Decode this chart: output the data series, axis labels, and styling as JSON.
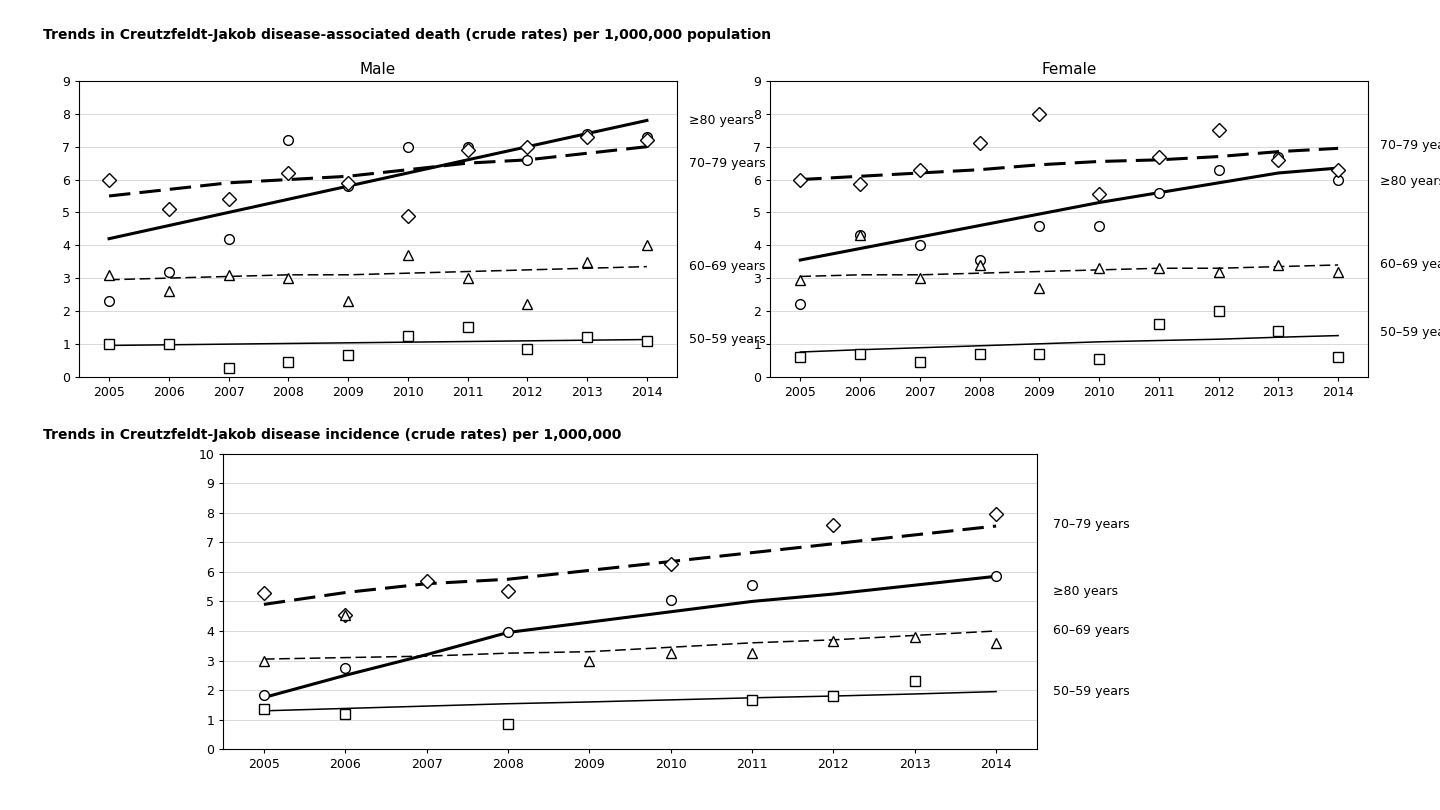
{
  "years": [
    2005,
    2006,
    2007,
    2008,
    2009,
    2010,
    2011,
    2012,
    2013,
    2014
  ],
  "title_top": "Trends in Creutzfeldt-Jakob disease-associated death (crude rates) per 1,000,000 population",
  "title_bottom": "Trends in Creutzfeldt-Jakob disease incidence (crude rates) per 1,000,000",
  "male_ge80_scatter": [
    2.3,
    3.2,
    4.2,
    7.2,
    5.8,
    7.0,
    7.0,
    6.6,
    7.4,
    7.3
  ],
  "male_ge80_trend": [
    4.2,
    4.6,
    5.0,
    5.4,
    5.8,
    6.2,
    6.6,
    7.0,
    7.4,
    7.8
  ],
  "male_7079_scatter": [
    6.0,
    5.1,
    5.4,
    6.2,
    5.9,
    4.9,
    6.9,
    7.0,
    7.3,
    7.2
  ],
  "male_7079_trend": [
    5.5,
    5.7,
    5.9,
    6.0,
    6.1,
    6.3,
    6.5,
    6.6,
    6.8,
    7.0
  ],
  "male_6069_scatter": [
    3.1,
    2.6,
    3.1,
    3.0,
    2.3,
    3.7,
    3.0,
    2.2,
    3.5,
    4.0
  ],
  "male_6069_trend": [
    2.95,
    3.0,
    3.05,
    3.1,
    3.1,
    3.15,
    3.2,
    3.25,
    3.3,
    3.35
  ],
  "male_5059_scatter": [
    1.0,
    1.0,
    0.25,
    0.45,
    0.65,
    1.25,
    1.5,
    0.85,
    1.2,
    1.1
  ],
  "male_5059_trend": [
    0.95,
    0.97,
    0.99,
    1.01,
    1.03,
    1.05,
    1.07,
    1.09,
    1.11,
    1.13
  ],
  "female_ge80_scatter": [
    2.2,
    4.3,
    4.0,
    3.55,
    4.6,
    4.6,
    5.6,
    6.3,
    6.7,
    6.0
  ],
  "female_ge80_trend": [
    3.55,
    3.9,
    4.25,
    4.6,
    4.95,
    5.3,
    5.6,
    5.9,
    6.2,
    6.35
  ],
  "female_7079_scatter": [
    6.0,
    5.85,
    6.3,
    7.1,
    8.0,
    5.55,
    6.7,
    7.5,
    6.6,
    6.3
  ],
  "female_7079_trend": [
    6.0,
    6.1,
    6.2,
    6.3,
    6.45,
    6.55,
    6.6,
    6.7,
    6.85,
    6.95
  ],
  "female_6069_scatter": [
    2.95,
    4.3,
    3.0,
    3.4,
    2.7,
    3.3,
    3.3,
    3.2,
    3.4,
    3.2
  ],
  "female_6069_trend": [
    3.05,
    3.1,
    3.1,
    3.15,
    3.2,
    3.25,
    3.3,
    3.3,
    3.35,
    3.4
  ],
  "female_5059_scatter": [
    0.6,
    0.7,
    0.45,
    0.7,
    0.7,
    0.55,
    1.6,
    2.0,
    1.4,
    0.6
  ],
  "female_5059_trend": [
    0.75,
    0.82,
    0.88,
    0.94,
    1.0,
    1.06,
    1.1,
    1.14,
    1.2,
    1.25
  ],
  "inc_ge80_scatter": [
    1.85,
    2.75,
    null,
    3.95,
    null,
    5.05,
    5.55,
    null,
    null,
    5.85
  ],
  "inc_ge80_trend": [
    1.75,
    2.5,
    3.2,
    3.95,
    4.3,
    4.65,
    5.0,
    5.25,
    5.55,
    5.85
  ],
  "inc_7079_scatter": [
    5.3,
    4.55,
    5.7,
    5.35,
    null,
    6.25,
    null,
    7.6,
    null,
    7.95
  ],
  "inc_7079_trend": [
    4.9,
    5.3,
    5.6,
    5.75,
    6.05,
    6.35,
    6.65,
    6.95,
    7.25,
    7.55
  ],
  "inc_6069_scatter": [
    3.0,
    4.55,
    null,
    null,
    3.0,
    3.25,
    3.25,
    3.65,
    3.8,
    3.6
  ],
  "inc_6069_trend": [
    3.05,
    3.1,
    3.15,
    3.25,
    3.3,
    3.45,
    3.6,
    3.7,
    3.85,
    4.0
  ],
  "inc_5059_scatter": [
    1.35,
    1.2,
    null,
    0.85,
    null,
    null,
    1.65,
    1.8,
    2.3,
    null
  ],
  "inc_5059_trend": [
    1.3,
    1.38,
    1.46,
    1.54,
    1.6,
    1.67,
    1.74,
    1.8,
    1.87,
    1.95
  ],
  "lw_thick": 2.2,
  "lw_thin": 1.1,
  "ms": 7
}
